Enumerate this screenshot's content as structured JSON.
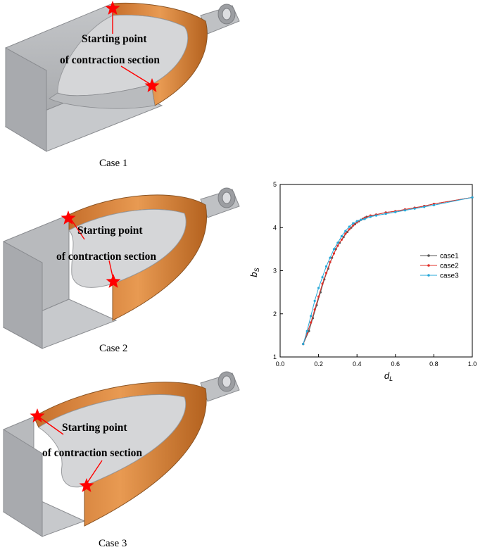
{
  "figure": {
    "panels": [
      {
        "caption": "Case 1",
        "annotation_line1": "Starting point",
        "annotation_line2": "of contraction section",
        "marker_icon": "red-star-icon"
      },
      {
        "caption": "Case 2",
        "annotation_line1": "Starting point",
        "annotation_line2": "of contraction section",
        "marker_icon": "red-star-icon"
      },
      {
        "caption": "Case 3",
        "annotation_line1": "Starting point",
        "annotation_line2": "of contraction section",
        "marker_icon": "red-star-icon"
      }
    ],
    "colors": {
      "solid_gray": "#b4b6b9",
      "contraction_orange": "#d98c42",
      "marker_red": "#ff0000"
    }
  },
  "chart_data": {
    "type": "line",
    "xlabel": "d",
    "xlabel_sub": "L",
    "ylabel": "b",
    "ylabel_sub": "S",
    "xlim": [
      0.0,
      1.0
    ],
    "ylim": [
      1,
      5
    ],
    "xticks": [
      "0.0",
      "0.2",
      "0.4",
      "0.6",
      "0.8",
      "1.0"
    ],
    "yticks": [
      "1",
      "2",
      "3",
      "4",
      "5"
    ],
    "grid": false,
    "legend_position": "right",
    "series": [
      {
        "name": "case1",
        "color": "#555555",
        "x": [
          0.12,
          0.15,
          0.17,
          0.19,
          0.21,
          0.23,
          0.25,
          0.27,
          0.29,
          0.31,
          0.33,
          0.35,
          0.37,
          0.39,
          0.41,
          0.43,
          0.45,
          0.5,
          0.55,
          0.6,
          0.65,
          0.7,
          0.75,
          0.8,
          1.0
        ],
        "y": [
          1.3,
          1.6,
          1.9,
          2.2,
          2.5,
          2.8,
          3.05,
          3.3,
          3.5,
          3.65,
          3.78,
          3.9,
          4.0,
          4.08,
          4.15,
          4.2,
          4.25,
          4.3,
          4.35,
          4.38,
          4.42,
          4.46,
          4.5,
          4.55,
          4.7
        ]
      },
      {
        "name": "case2",
        "color": "#e0302a",
        "x": [
          0.12,
          0.14,
          0.16,
          0.18,
          0.2,
          0.22,
          0.24,
          0.26,
          0.28,
          0.3,
          0.32,
          0.34,
          0.36,
          0.38,
          0.4,
          0.42,
          0.44,
          0.47,
          0.5,
          0.55,
          0.6,
          0.65,
          0.7,
          0.75,
          0.8,
          1.0
        ],
        "y": [
          1.3,
          1.55,
          1.8,
          2.1,
          2.4,
          2.7,
          2.95,
          3.2,
          3.4,
          3.58,
          3.72,
          3.86,
          3.96,
          4.05,
          4.12,
          4.18,
          4.23,
          4.28,
          4.3,
          4.35,
          4.38,
          4.42,
          4.46,
          4.5,
          4.55,
          4.7
        ]
      },
      {
        "name": "case3",
        "color": "#27a8d8",
        "x": [
          0.12,
          0.14,
          0.16,
          0.18,
          0.2,
          0.22,
          0.24,
          0.26,
          0.28,
          0.3,
          0.32,
          0.34,
          0.36,
          0.38,
          0.4,
          0.42,
          0.44,
          0.47,
          0.5,
          0.55,
          0.6,
          0.65,
          0.7,
          0.75,
          0.8,
          1.0
        ],
        "y": [
          1.3,
          1.6,
          1.95,
          2.3,
          2.6,
          2.85,
          3.1,
          3.3,
          3.5,
          3.65,
          3.8,
          3.92,
          4.02,
          4.1,
          4.15,
          4.18,
          4.2,
          4.25,
          4.28,
          4.32,
          4.36,
          4.4,
          4.44,
          4.48,
          4.52,
          4.7
        ]
      }
    ]
  }
}
